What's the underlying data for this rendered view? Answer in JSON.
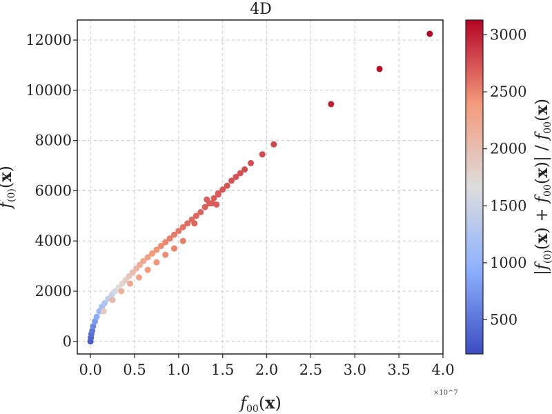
{
  "chart_data": {
    "type": "scatter",
    "title": "4D",
    "xlabel": "f_{00}(x)",
    "ylabel": "f_{(0)}(x)",
    "x_multiplier": "×10^7",
    "colorbar_label": "|f_{(0)}(x) + f_{00}(x)| / f_{00}(x)",
    "xlim": [
      -0.15,
      4.0
    ],
    "ylim": [
      -500,
      12800
    ],
    "clim": [
      200,
      3130
    ],
    "xticks": [
      0.0,
      0.5,
      1.0,
      1.5,
      2.0,
      2.5,
      3.0,
      3.5,
      4.0
    ],
    "xtick_labels": [
      "0.0",
      "0.5",
      "1.0",
      "1.5",
      "2.0",
      "2.5",
      "3.0",
      "3.5",
      "4.0"
    ],
    "yticks": [
      0,
      2000,
      4000,
      6000,
      8000,
      10000,
      12000
    ],
    "ytick_labels": [
      "0",
      "2000",
      "4000",
      "6000",
      "8000",
      "10000",
      "12000"
    ],
    "cticks": [
      500,
      1000,
      1500,
      2000,
      2500,
      3000
    ],
    "ctick_labels": [
      "500",
      "1000",
      "1500",
      "2000",
      "2500",
      "3000"
    ],
    "colormap": "coolwarm",
    "colormap_stops": [
      "#3b4cc0",
      "#8db0fe",
      "#dddddd",
      "#f49a7b",
      "#b40426"
    ],
    "grid": true,
    "series": [
      {
        "points": [
          [
            0.0,
            0
          ],
          [
            0.005,
            150
          ],
          [
            0.01,
            300
          ],
          [
            0.02,
            420
          ],
          [
            0.03,
            600
          ],
          [
            0.05,
            800
          ],
          [
            0.07,
            980
          ],
          [
            0.1,
            1200
          ],
          [
            0.13,
            1380
          ],
          [
            0.16,
            1520
          ],
          [
            0.2,
            1700
          ],
          [
            0.24,
            1850
          ],
          [
            0.28,
            2000
          ],
          [
            0.32,
            2150
          ],
          [
            0.36,
            2300
          ],
          [
            0.4,
            2450
          ],
          [
            0.44,
            2600
          ],
          [
            0.48,
            2750
          ],
          [
            0.52,
            2900
          ],
          [
            0.56,
            3050
          ],
          [
            0.6,
            3200
          ],
          [
            0.65,
            3350
          ],
          [
            0.7,
            3500
          ],
          [
            0.75,
            3650
          ],
          [
            0.8,
            3800
          ],
          [
            0.85,
            3950
          ],
          [
            0.9,
            4100
          ],
          [
            0.95,
            4250
          ],
          [
            1.0,
            4400
          ],
          [
            1.05,
            4550
          ],
          [
            1.1,
            4700
          ],
          [
            1.15,
            4850
          ],
          [
            1.2,
            5000
          ],
          [
            1.25,
            5150
          ],
          [
            1.3,
            5350
          ],
          [
            1.35,
            5500
          ],
          [
            1.4,
            5700
          ],
          [
            1.45,
            5900
          ],
          [
            1.5,
            6050
          ],
          [
            1.55,
            6200
          ],
          [
            1.6,
            6400
          ],
          [
            1.65,
            6550
          ],
          [
            1.7,
            6700
          ],
          [
            1.75,
            6850
          ],
          [
            1.82,
            7100
          ],
          [
            1.95,
            7450
          ],
          [
            2.08,
            7850
          ],
          [
            2.73,
            9450
          ],
          [
            3.28,
            10850
          ],
          [
            3.85,
            12250
          ],
          [
            0.15,
            1200
          ],
          [
            0.25,
            1650
          ],
          [
            0.35,
            2000
          ],
          [
            0.45,
            2300
          ],
          [
            0.55,
            2550
          ],
          [
            0.65,
            2850
          ],
          [
            0.75,
            3150
          ],
          [
            0.85,
            3450
          ],
          [
            0.95,
            3700
          ],
          [
            1.05,
            4000
          ],
          [
            1.18,
            4700
          ],
          [
            1.38,
            5500
          ],
          [
            1.43,
            5450
          ],
          [
            1.32,
            5650
          ],
          [
            1.45,
            5850
          ]
        ],
        "colors": [
          300,
          380,
          450,
          520,
          650,
          780,
          900,
          1050,
          1150,
          1250,
          1380,
          1480,
          1580,
          1680,
          1760,
          1850,
          1930,
          2020,
          2100,
          2180,
          2260,
          2330,
          2380,
          2430,
          2470,
          2500,
          2530,
          2550,
          2570,
          2590,
          2610,
          2630,
          2650,
          2660,
          2680,
          2690,
          2700,
          2710,
          2720,
          2730,
          2740,
          2750,
          2760,
          2770,
          2780,
          2790,
          2810,
          3000,
          3080,
          3130,
          1900,
          2050,
          2150,
          2250,
          2320,
          2380,
          2430,
          2470,
          2510,
          2540,
          2650,
          2700,
          2700,
          2690,
          2710
        ]
      }
    ]
  }
}
